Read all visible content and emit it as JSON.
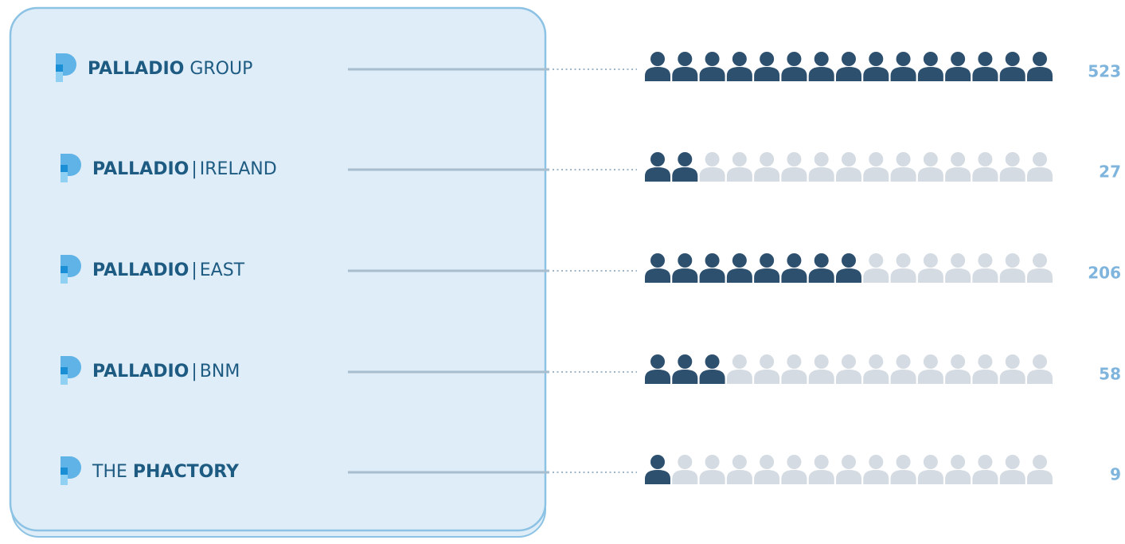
{
  "chart_data": {
    "type": "pictogram",
    "categories": [
      [
        {
          "text": "PALLADIO",
          "weight": "bold"
        },
        {
          "text": "GROUP",
          "weight": "normal"
        }
      ],
      [
        {
          "text": "PALLADIO",
          "weight": "bold"
        },
        {
          "text": "|",
          "weight": "normal"
        },
        {
          "text": "IRELAND",
          "weight": "normal"
        }
      ],
      [
        {
          "text": "PALLADIO",
          "weight": "bold"
        },
        {
          "text": "|",
          "weight": "normal"
        },
        {
          "text": "EAST",
          "weight": "normal"
        }
      ],
      [
        {
          "text": "PALLADIO",
          "weight": "bold"
        },
        {
          "text": "|",
          "weight": "normal"
        },
        {
          "text": "BNM",
          "weight": "normal"
        }
      ],
      [
        {
          "text": "THE",
          "weight": "normal"
        },
        {
          "text": "PHACTORY",
          "weight": "bold"
        }
      ]
    ],
    "values": [
      523,
      27,
      206,
      58,
      9
    ],
    "filled": [
      15,
      2,
      8,
      3,
      1
    ],
    "icon_total": 15,
    "color": "#2e506f",
    "empty_color": "#d4dbe2",
    "value_color": "#7fb5dd",
    "label_color": "#1e5b82"
  }
}
